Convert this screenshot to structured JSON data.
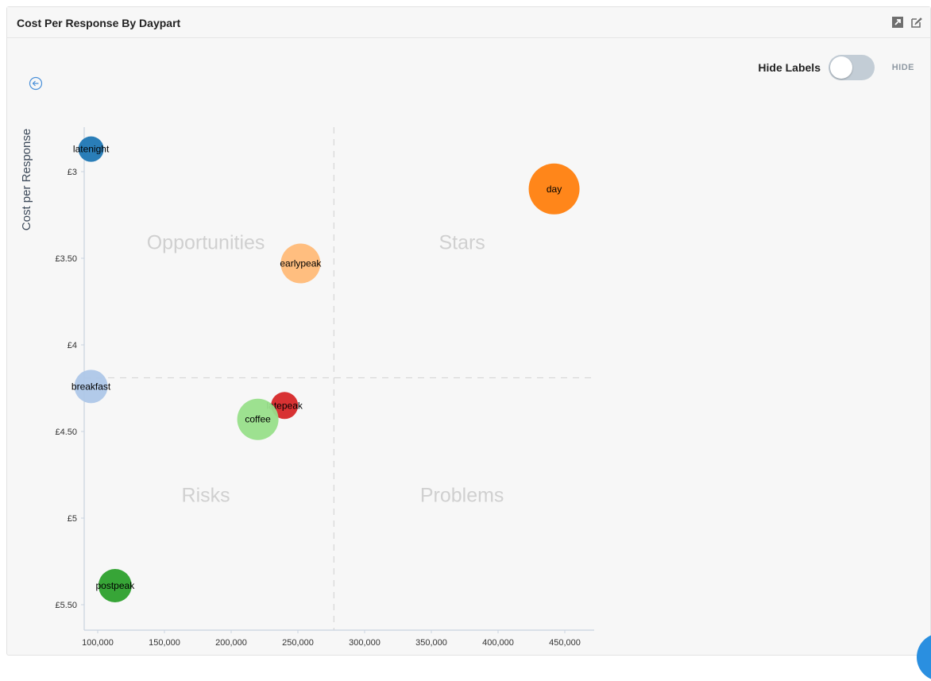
{
  "panel": {
    "title": "Cost Per Response By Daypart",
    "icons": [
      "expand-icon",
      "edit-icon"
    ]
  },
  "controls": {
    "hide_labels_label": "Hide Labels",
    "toggle_state": "HIDE",
    "toggle_on": false,
    "back_icon": "back-arrow-icon"
  },
  "chart_data": {
    "type": "scatter",
    "title": "",
    "xlabel": "",
    "ylabel": "Cost per Response",
    "xlim": [
      85000,
      462000
    ],
    "ylim": [
      2.8,
      5.75
    ],
    "y_reversed": true,
    "x_ticks": [
      100000,
      150000,
      200000,
      250000,
      300000,
      350000,
      400000,
      450000
    ],
    "x_tick_labels": [
      "100,000",
      "150,000",
      "200,000",
      "250,000",
      "300,000",
      "350,000",
      "400,000",
      "450,000"
    ],
    "y_ticks": [
      3,
      3.5,
      4,
      4.5,
      5,
      5.5
    ],
    "y_tick_labels": [
      "£3",
      "£3.50",
      "£4",
      "£4.50",
      "£5",
      "£5.50"
    ],
    "quadrant_divider": {
      "x": 277000,
      "y": 4.19
    },
    "quadrant_labels": [
      {
        "text": "Opportunities",
        "x": 181000,
        "y": 3.41
      },
      {
        "text": "Stars",
        "x": 373000,
        "y": 3.41
      },
      {
        "text": "Risks",
        "x": 181000,
        "y": 4.87
      },
      {
        "text": "Problems",
        "x": 373000,
        "y": 4.87
      }
    ],
    "points": [
      {
        "label": "latenight",
        "x": 95000,
        "y": 2.87,
        "size": 16,
        "color": "#1f77b4"
      },
      {
        "label": "day",
        "x": 442000,
        "y": 3.1,
        "size": 32,
        "color": "#ff7f0e"
      },
      {
        "label": "earlypeak",
        "x": 252000,
        "y": 3.53,
        "size": 25,
        "color": "#ffbb78"
      },
      {
        "label": "breakfast",
        "x": 95000,
        "y": 4.24,
        "size": 21,
        "color": "#aec7e8"
      },
      {
        "label": "latepeak",
        "x": 240000,
        "y": 4.35,
        "size": 17,
        "color": "#d62728"
      },
      {
        "label": "coffee",
        "x": 220000,
        "y": 4.43,
        "size": 26,
        "color": "#98df8a"
      },
      {
        "label": "postpeak",
        "x": 113000,
        "y": 5.39,
        "size": 21,
        "color": "#2ca02c"
      }
    ],
    "grid": false,
    "legend": "none"
  }
}
